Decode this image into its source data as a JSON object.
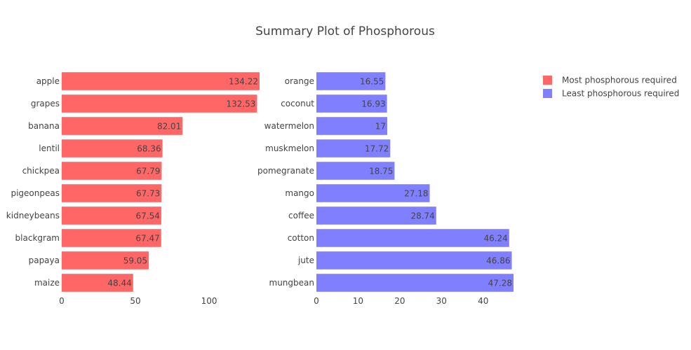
{
  "colors": {
    "left": "#ff6666",
    "right": "#8080ff"
  },
  "chart_data": [
    {
      "type": "bar",
      "orientation": "horizontal",
      "title": "Summary Plot of Phosphorous",
      "series_name": "Most phosphorous required",
      "categories": [
        "apple",
        "grapes",
        "banana",
        "lentil",
        "chickpea",
        "pigeonpeas",
        "kidneybeans",
        "blackgram",
        "papaya",
        "maize"
      ],
      "values": [
        134.22,
        132.53,
        82.01,
        68.36,
        67.79,
        67.73,
        67.54,
        67.47,
        59.05,
        48.44
      ],
      "value_labels": [
        "134.22",
        "132.53",
        "82.01",
        "68.36",
        "67.79",
        "67.73",
        "67.54",
        "67.47",
        "59.05",
        "48.44"
      ],
      "xlim": [
        0,
        134.22
      ],
      "xticks": [
        0,
        50,
        100
      ],
      "xtick_labels": [
        "0",
        "50",
        "100"
      ],
      "grid": false
    },
    {
      "type": "bar",
      "orientation": "horizontal",
      "series_name": "Least phosphorous required",
      "categories": [
        "orange",
        "coconut",
        "watermelon",
        "muskmelon",
        "pomegranate",
        "mango",
        "coffee",
        "cotton",
        "jute",
        "mungbean"
      ],
      "values": [
        16.55,
        16.93,
        17,
        17.72,
        18.75,
        27.18,
        28.74,
        46.24,
        46.86,
        47.28
      ],
      "value_labels": [
        "16.55",
        "16.93",
        "17",
        "17.72",
        "18.75",
        "27.18",
        "28.74",
        "46.24",
        "46.86",
        "47.28"
      ],
      "xlim": [
        0,
        47.28
      ],
      "xticks": [
        0,
        10,
        20,
        30,
        40
      ],
      "xtick_labels": [
        "0",
        "10",
        "20",
        "30",
        "40"
      ],
      "grid": false
    }
  ],
  "legend": {
    "placement": "top-right",
    "items": [
      {
        "label": "Most phosphorous required",
        "color": "#ff6666"
      },
      {
        "label": "Least phosphorous required",
        "color": "#8080ff"
      }
    ]
  }
}
